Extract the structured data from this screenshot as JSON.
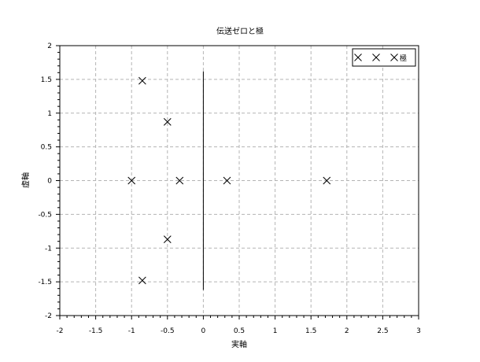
{
  "chart_data": {
    "type": "scatter",
    "title": "伝送ゼロと極",
    "xlabel": "実軸",
    "ylabel": "虚軸",
    "xlim": [
      -2,
      3
    ],
    "ylim": [
      -2,
      2
    ],
    "xticks": [
      -2,
      -1.5,
      -1,
      -0.5,
      0,
      0.5,
      1,
      1.5,
      2,
      2.5,
      3
    ],
    "yticks": [
      -2,
      -1.5,
      -1,
      -0.5,
      0,
      0.5,
      1,
      1.5,
      2
    ],
    "xtick_labels": [
      "-2",
      "-1.5",
      "-1",
      "-0.5",
      "0",
      "0.5",
      "1",
      "1.5",
      "2",
      "2.5",
      "3"
    ],
    "ytick_labels": [
      "-2",
      "-1.5",
      "-1",
      "-0.5",
      "0",
      "0.5",
      "1",
      "1.5",
      "2"
    ],
    "grid": true,
    "legend": {
      "position": "top-right",
      "label": "極"
    },
    "series": [
      {
        "name": "極",
        "marker": "x",
        "color": "#000000",
        "points": [
          {
            "x": -0.85,
            "y": 1.48
          },
          {
            "x": -0.5,
            "y": 0.87
          },
          {
            "x": -1.0,
            "y": 0.0
          },
          {
            "x": -0.33,
            "y": 0.0
          },
          {
            "x": 0.33,
            "y": 0.0
          },
          {
            "x": 1.72,
            "y": 0.0
          },
          {
            "x": -0.5,
            "y": -0.87
          },
          {
            "x": -0.85,
            "y": -1.48
          }
        ]
      }
    ],
    "reference_lines": [
      {
        "x": 0,
        "y_from": -1.62,
        "y_to": 1.62,
        "color": "#000000"
      }
    ]
  }
}
